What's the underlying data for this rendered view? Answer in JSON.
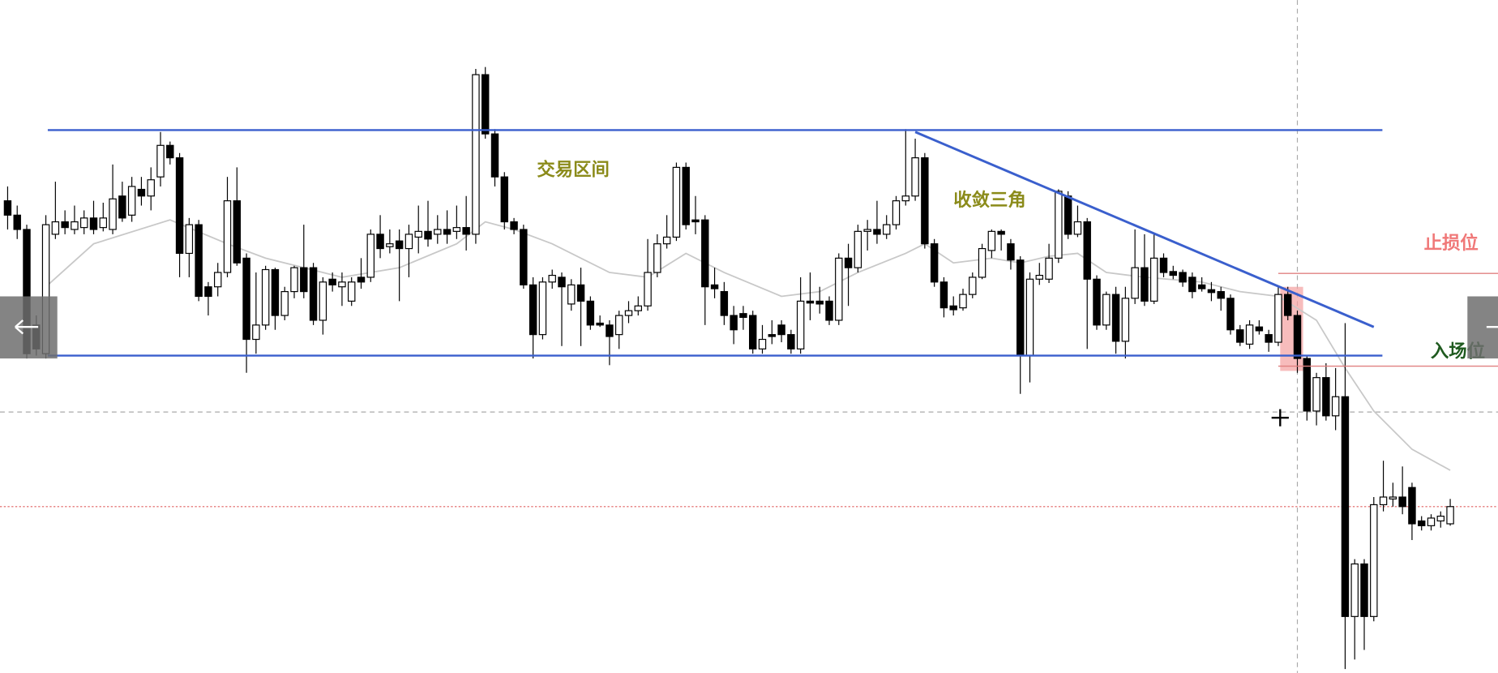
{
  "chart_data": {
    "type": "candlestick",
    "ylim": [
      0,
      704
    ],
    "up_color": "#ffffff",
    "down_color": "#000000",
    "candles": [
      [
        494,
        509,
        464,
        479
      ],
      [
        479,
        489,
        454,
        464
      ],
      [
        464,
        469,
        329,
        334
      ],
      [
        364,
        374,
        332,
        339
      ],
      [
        334,
        479,
        329,
        469
      ],
      [
        459,
        514,
        454,
        472
      ],
      [
        472,
        484,
        459,
        466
      ],
      [
        464,
        489,
        459,
        472
      ],
      [
        466,
        484,
        459,
        476
      ],
      [
        476,
        494,
        459,
        464
      ],
      [
        466,
        492,
        462,
        476
      ],
      [
        464,
        532,
        459,
        496
      ],
      [
        499,
        514,
        472,
        476
      ],
      [
        479,
        519,
        472,
        509
      ],
      [
        506,
        519,
        489,
        499
      ],
      [
        499,
        529,
        484,
        516
      ],
      [
        519,
        566,
        509,
        552
      ],
      [
        552,
        556,
        532,
        539
      ],
      [
        539,
        544,
        414,
        439
      ],
      [
        439,
        476,
        414,
        469
      ],
      [
        469,
        474,
        389,
        394
      ],
      [
        404,
        409,
        374,
        394
      ],
      [
        404,
        429,
        394,
        419
      ],
      [
        419,
        519,
        414,
        494
      ],
      [
        494,
        529,
        426,
        429
      ],
      [
        434,
        439,
        314,
        349
      ],
      [
        349,
        419,
        334,
        364
      ],
      [
        364,
        426,
        359,
        422
      ],
      [
        422,
        424,
        359,
        374
      ],
      [
        374,
        404,
        369,
        399
      ],
      [
        399,
        426,
        392,
        424
      ],
      [
        424,
        469,
        392,
        399
      ],
      [
        424,
        429,
        364,
        369
      ],
      [
        369,
        414,
        354,
        409
      ],
      [
        412,
        419,
        399,
        406
      ],
      [
        404,
        419,
        384,
        409
      ],
      [
        389,
        414,
        384,
        409
      ],
      [
        414,
        434,
        402,
        409
      ],
      [
        414,
        464,
        409,
        459
      ],
      [
        459,
        479,
        434,
        444
      ],
      [
        446,
        464,
        439,
        449
      ],
      [
        452,
        464,
        389,
        444
      ],
      [
        444,
        469,
        414,
        459
      ],
      [
        456,
        489,
        439,
        462
      ],
      [
        462,
        494,
        446,
        454
      ],
      [
        459,
        479,
        449,
        464
      ],
      [
        464,
        484,
        449,
        459
      ],
      [
        462,
        489,
        454,
        466
      ],
      [
        466,
        499,
        442,
        459
      ],
      [
        459,
        632,
        449,
        626
      ],
      [
        626,
        634,
        559,
        564
      ],
      [
        564,
        569,
        509,
        519
      ],
      [
        519,
        524,
        464,
        472
      ],
      [
        472,
        476,
        459,
        464
      ],
      [
        464,
        469,
        402,
        406
      ],
      [
        406,
        414,
        329,
        354
      ],
      [
        354,
        414,
        349,
        409
      ],
      [
        409,
        422,
        402,
        416
      ],
      [
        414,
        419,
        342,
        404
      ],
      [
        386,
        412,
        379,
        406
      ],
      [
        406,
        424,
        342,
        389
      ],
      [
        389,
        394,
        359,
        364
      ],
      [
        366,
        374,
        362,
        364
      ],
      [
        364,
        369,
        322,
        352
      ],
      [
        354,
        379,
        339,
        374
      ],
      [
        374,
        389,
        366,
        379
      ],
      [
        379,
        394,
        374,
        384
      ],
      [
        384,
        454,
        379,
        419
      ],
      [
        419,
        459,
        414,
        449
      ],
      [
        449,
        479,
        444,
        456
      ],
      [
        456,
        534,
        452,
        529
      ],
      [
        529,
        534,
        464,
        469
      ],
      [
        474,
        499,
        459,
        472
      ],
      [
        474,
        479,
        364,
        404
      ],
      [
        406,
        424,
        392,
        402
      ],
      [
        399,
        409,
        364,
        374
      ],
      [
        374,
        384,
        344,
        359
      ],
      [
        376,
        384,
        359,
        372
      ],
      [
        374,
        379,
        334,
        339
      ],
      [
        339,
        364,
        334,
        349
      ],
      [
        354,
        369,
        344,
        352
      ],
      [
        364,
        369,
        346,
        354
      ],
      [
        354,
        359,
        334,
        339
      ],
      [
        339,
        414,
        334,
        389
      ],
      [
        389,
        419,
        369,
        387
      ],
      [
        389,
        404,
        376,
        386
      ],
      [
        389,
        394,
        364,
        369
      ],
      [
        369,
        439,
        364,
        434
      ],
      [
        434,
        449,
        384,
        424
      ],
      [
        424,
        469,
        419,
        462
      ],
      [
        462,
        474,
        442,
        464
      ],
      [
        464,
        494,
        449,
        459
      ],
      [
        459,
        479,
        454,
        469
      ],
      [
        469,
        499,
        464,
        494
      ],
      [
        494,
        569,
        489,
        499
      ],
      [
        499,
        559,
        494,
        539
      ],
      [
        539,
        544,
        444,
        449
      ],
      [
        449,
        454,
        404,
        409
      ],
      [
        409,
        414,
        372,
        382
      ],
      [
        384,
        394,
        374,
        380
      ],
      [
        382,
        402,
        379,
        396
      ],
      [
        396,
        419,
        392,
        414
      ],
      [
        414,
        449,
        412,
        444
      ],
      [
        442,
        464,
        434,
        462
      ],
      [
        462,
        464,
        442,
        459
      ],
      [
        449,
        454,
        422,
        432
      ],
      [
        432,
        436,
        292,
        332
      ],
      [
        332,
        419,
        304,
        412
      ],
      [
        412,
        429,
        406,
        416
      ],
      [
        412,
        449,
        408,
        434
      ],
      [
        434,
        506,
        429,
        504
      ],
      [
        499,
        504,
        454,
        459
      ],
      [
        459,
        489,
        456,
        472
      ],
      [
        472,
        476,
        339,
        412
      ],
      [
        412,
        416,
        359,
        364
      ],
      [
        364,
        399,
        359,
        396
      ],
      [
        396,
        404,
        334,
        347
      ],
      [
        347,
        404,
        329,
        392
      ],
      [
        392,
        464,
        386,
        424
      ],
      [
        424,
        459,
        384,
        389
      ],
      [
        389,
        459,
        386,
        434
      ],
      [
        434,
        439,
        414,
        419
      ],
      [
        420,
        426,
        412,
        416
      ],
      [
        419,
        422,
        404,
        409
      ],
      [
        414,
        419,
        392,
        399
      ],
      [
        406,
        414,
        399,
        402
      ],
      [
        401,
        409,
        389,
        398
      ],
      [
        399,
        404,
        379,
        392
      ],
      [
        392,
        396,
        354,
        359
      ],
      [
        359,
        364,
        342,
        346
      ],
      [
        344,
        369,
        339,
        364
      ],
      [
        362,
        369,
        354,
        358
      ],
      [
        354,
        359,
        336,
        346
      ],
      [
        346,
        404,
        342,
        396
      ],
      [
        396,
        404,
        369,
        374
      ],
      [
        374,
        379,
        314,
        329
      ],
      [
        329,
        332,
        264,
        274
      ],
      [
        274,
        314,
        259,
        309
      ],
      [
        309,
        324,
        264,
        269
      ],
      [
        269,
        319,
        254,
        289
      ],
      [
        289,
        366,
        4,
        59
      ],
      [
        59,
        119,
        14,
        114
      ],
      [
        114,
        119,
        24,
        59
      ],
      [
        59,
        184,
        54,
        176
      ],
      [
        176,
        222,
        169,
        184
      ],
      [
        182,
        199,
        174,
        184
      ],
      [
        184,
        216,
        166,
        174
      ],
      [
        194,
        199,
        139,
        156
      ],
      [
        159,
        164,
        149,
        154
      ],
      [
        154,
        166,
        149,
        162
      ],
      [
        159,
        169,
        152,
        164
      ],
      [
        156,
        182,
        154,
        174
      ]
    ],
    "moving_average": {
      "color": "#c8c8c8",
      "x": [
        4,
        9,
        17,
        23,
        27,
        35,
        41,
        47,
        50,
        53,
        57,
        63,
        67,
        71,
        75,
        81,
        85,
        89,
        94,
        96,
        99,
        103,
        106,
        109,
        112,
        115,
        119,
        125,
        129,
        133,
        137,
        140,
        143,
        147,
        151
      ],
      "values": [
        404,
        449,
        474,
        449,
        434,
        414,
        424,
        449,
        472,
        464,
        449,
        419,
        414,
        439,
        419,
        394,
        399,
        419,
        439,
        449,
        429,
        434,
        429,
        436,
        439,
        419,
        414,
        409,
        399,
        394,
        369,
        319,
        274,
        234,
        212
      ]
    },
    "range_high": 568,
    "range_low": 332,
    "trendline": {
      "x": [
        95,
        143
      ],
      "values": [
        566,
        362
      ]
    },
    "level_color": "#3a5fcd",
    "stop_loss": 418,
    "entry": 321,
    "crosshair": {
      "x": 135,
      "value": 273
    },
    "last_price": 174,
    "annotations": [
      {
        "text": "交易区间",
        "color": "#8b8b1a"
      },
      {
        "text": "收敛三角",
        "color": "#8b8b1a"
      },
      {
        "text": "止损位",
        "color": "#f07878"
      },
      {
        "text": "入场位",
        "color": "#1f5a1f"
      }
    ]
  }
}
